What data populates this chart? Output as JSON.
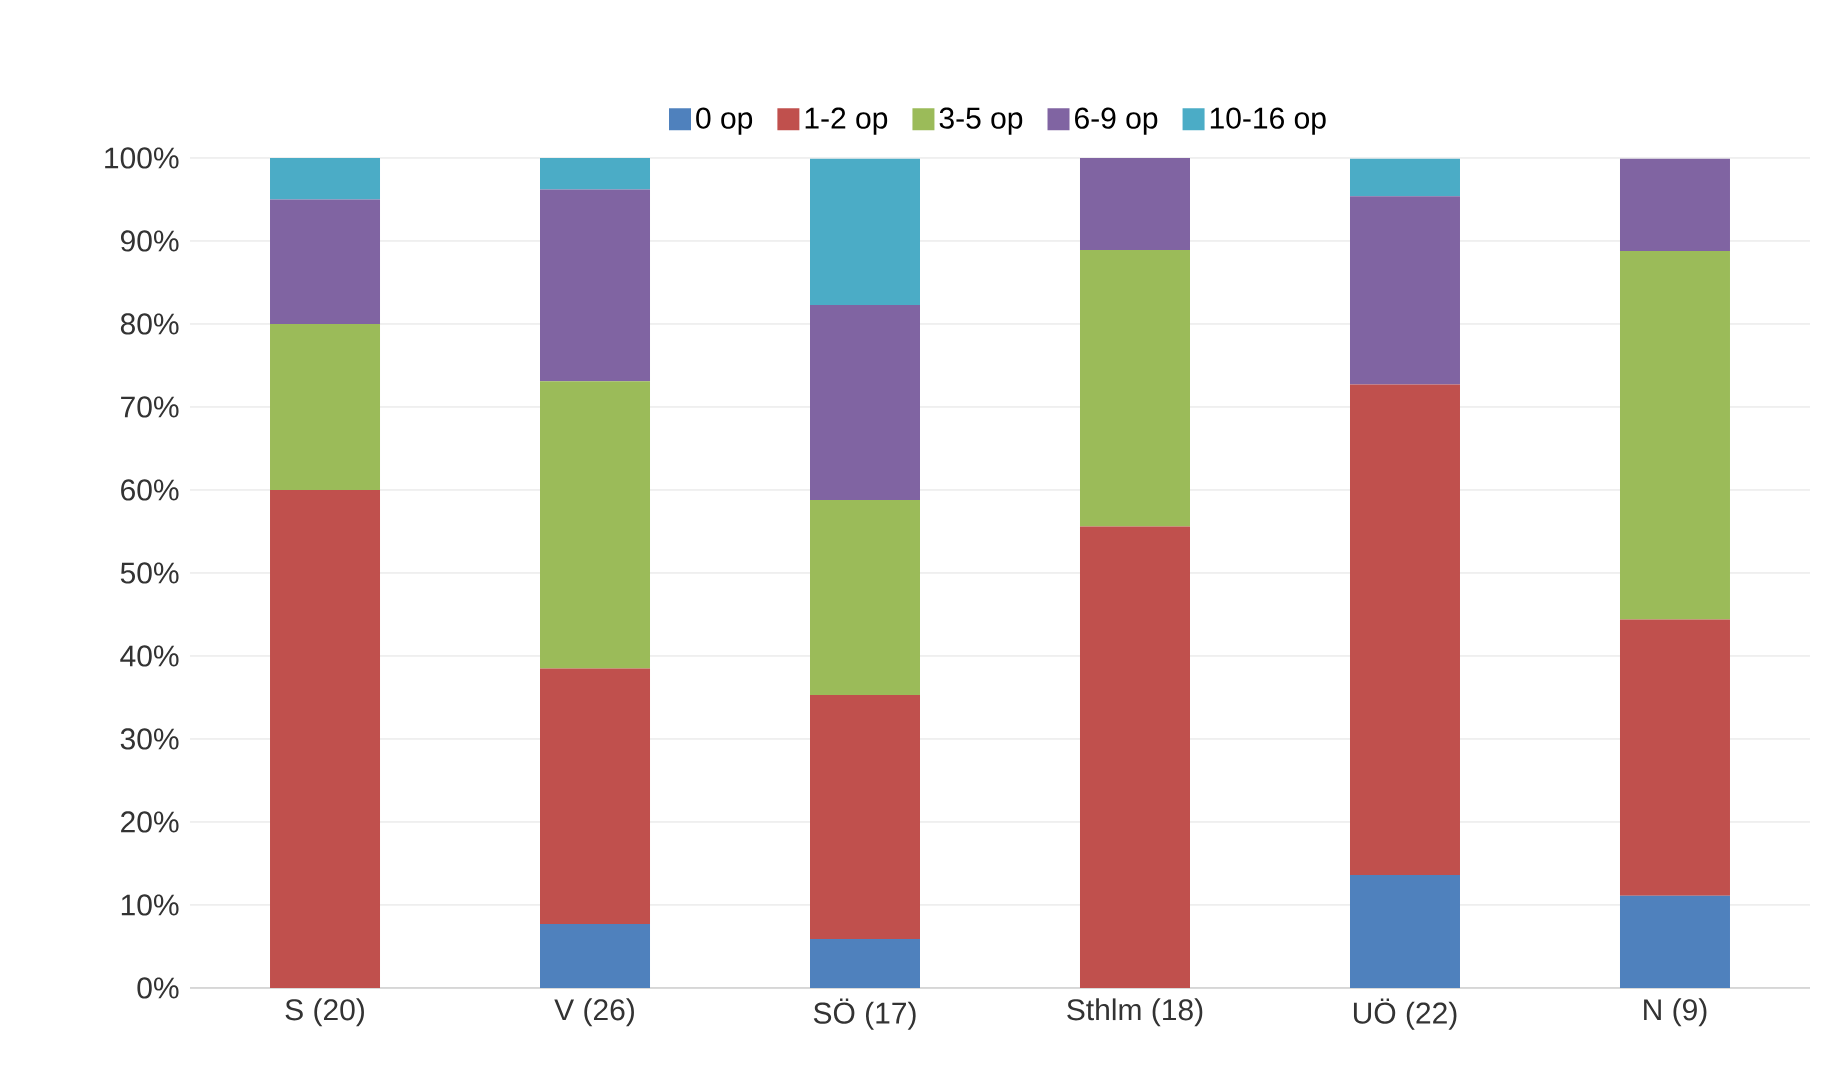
{
  "chart_data": {
    "type": "bar",
    "stacked": true,
    "grid": "y",
    "legend": "top",
    "categories": [
      "S (20)",
      "V (26)",
      "SÖ (17)",
      "Sthlm (18)",
      "UÖ (22)",
      "N (9)"
    ],
    "ylim": [
      0,
      100
    ],
    "yticks": [
      {
        "value": 0,
        "label": "0%"
      },
      {
        "value": 10,
        "label": "10%"
      },
      {
        "value": 20,
        "label": "20%"
      },
      {
        "value": 30,
        "label": "30%"
      },
      {
        "value": 40,
        "label": "40%"
      },
      {
        "value": 50,
        "label": "50%"
      },
      {
        "value": 60,
        "label": "60%"
      },
      {
        "value": 70,
        "label": "70%"
      },
      {
        "value": 80,
        "label": "80%"
      },
      {
        "value": 90,
        "label": "90%"
      },
      {
        "value": 100,
        "label": "100%"
      }
    ],
    "series": [
      {
        "name": "0 op",
        "color": "#4f81bd",
        "values": [
          0,
          7.7,
          5.9,
          0,
          13.6,
          11.1
        ]
      },
      {
        "name": "1-2 op",
        "color": "#c0504d",
        "values": [
          60,
          30.8,
          29.4,
          55.6,
          59.1,
          33.3
        ]
      },
      {
        "name": "3-5 op",
        "color": "#9bbb59",
        "values": [
          20,
          34.6,
          23.5,
          33.3,
          0,
          44.4
        ]
      },
      {
        "name": "6-9 op",
        "color": "#8064a2",
        "values": [
          15,
          23.1,
          23.5,
          11.1,
          22.7,
          11.1
        ]
      },
      {
        "name": "10-16 op",
        "color": "#4bacc6",
        "values": [
          5,
          3.8,
          17.6,
          0,
          4.5,
          0
        ]
      }
    ]
  }
}
